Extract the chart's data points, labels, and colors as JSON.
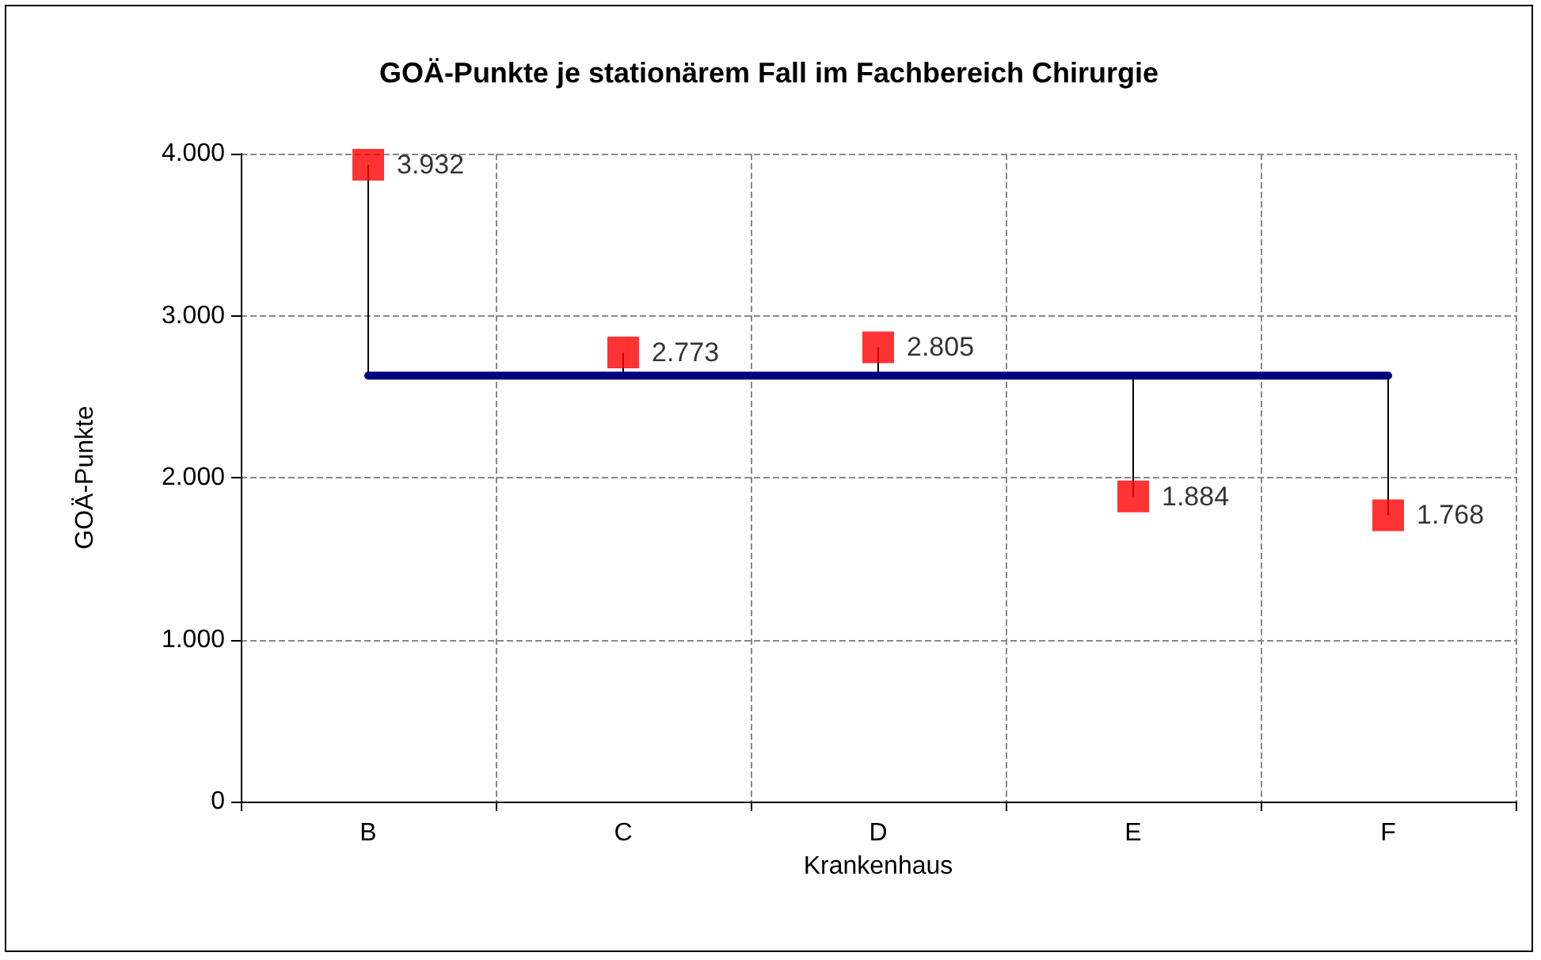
{
  "chart_data": {
    "type": "scatter",
    "title": "GOÄ-Punkte je stationärem Fall im Fachbereich Chirurgie",
    "xlabel": "Krankenhaus",
    "ylabel": "GOÄ-Punkte",
    "categories": [
      "B",
      "C",
      "D",
      "E",
      "F"
    ],
    "ylim": [
      0,
      4000
    ],
    "yticks": [
      {
        "value": 0,
        "label": "0"
      },
      {
        "value": 1000,
        "label": "1.000"
      },
      {
        "value": 2000,
        "label": "2.000"
      },
      {
        "value": 3000,
        "label": "3.000"
      },
      {
        "value": 4000,
        "label": "4.000"
      }
    ],
    "grid": true,
    "series": [
      {
        "color": "#ff0000",
        "marker": "square",
        "values": [
          3932,
          2773,
          2805,
          1884,
          1768
        ],
        "value_labels": [
          "3.932",
          "2.773",
          "2.805",
          "1.884",
          "1.768"
        ]
      },
      {
        "type": "line",
        "color": "#000080",
        "marker": "none",
        "line_style": "solid",
        "values": [
          2630,
          2630,
          2630,
          2630,
          2630
        ]
      }
    ]
  }
}
